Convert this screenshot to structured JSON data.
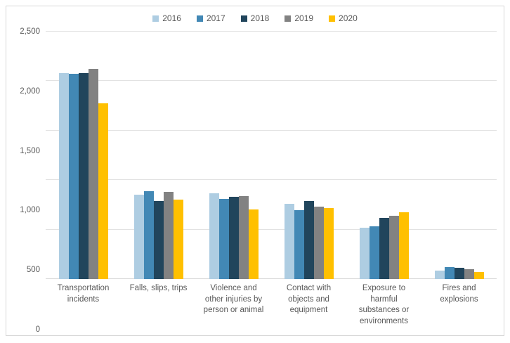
{
  "chart_data": {
    "type": "bar",
    "title": "",
    "categories": [
      "Transportation incidents",
      "Falls, slips, trips",
      "Violence and other injuries by person or animal",
      "Contact with objects and equipment",
      "Exposure to harmful substances or environments",
      "Fires and explosions"
    ],
    "series": [
      {
        "name": "2016",
        "color": "#AECDE2",
        "values": [
          2083,
          849,
          866,
          761,
          518,
          88
        ]
      },
      {
        "name": "2017",
        "color": "#4288B5",
        "values": [
          2077,
          887,
          807,
          695,
          531,
          123
        ]
      },
      {
        "name": "2018",
        "color": "#21455C",
        "values": [
          2080,
          791,
          828,
          786,
          621,
          115
        ]
      },
      {
        "name": "2019",
        "color": "#828282",
        "values": [
          2122,
          880,
          841,
          732,
          642,
          99
        ]
      },
      {
        "name": "2020",
        "color": "#FFC000",
        "values": [
          1778,
          805,
          705,
          716,
          672,
          72
        ]
      }
    ],
    "xlabel": "",
    "ylabel": "",
    "ylim": [
      0,
      2500
    ],
    "y_ticks": [
      "0",
      "500",
      "1,000",
      "1,500",
      "2,000",
      "2,500"
    ],
    "grid": true,
    "legend_position": "top"
  }
}
